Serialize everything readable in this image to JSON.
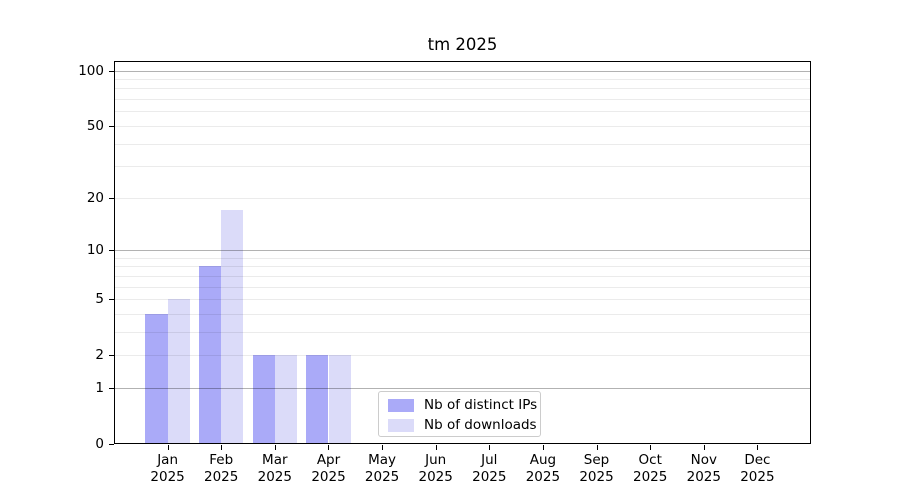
{
  "title": "tm 2025",
  "colors": {
    "background": "#ffffff",
    "spine": "#000000",
    "major_gridline": "#b3b3b3",
    "minor_gridline": "#ebebeb",
    "legend_border": "#cccccc",
    "bar_distinct_ips": "#aaaaf8",
    "bar_downloads": "#dbdbf9"
  },
  "chart_data": {
    "type": "bar",
    "title": "tm 2025",
    "xlabel": "",
    "ylabel": "",
    "categories": [
      "Jan 2025",
      "Feb 2025",
      "Mar 2025",
      "Apr 2025",
      "May 2025",
      "Jun 2025",
      "Jul 2025",
      "Aug 2025",
      "Sep 2025",
      "Oct 2025",
      "Nov 2025",
      "Dec 2025"
    ],
    "series": [
      {
        "name": "Nb of distinct IPs",
        "color": "#aaaaf8",
        "values": [
          4,
          8,
          2,
          2,
          0,
          0,
          0,
          0,
          0,
          0,
          0,
          0
        ]
      },
      {
        "name": "Nb of downloads",
        "color": "#dbdbf9",
        "values": [
          5,
          17,
          2,
          2,
          0,
          0,
          0,
          0,
          0,
          0,
          0,
          0
        ]
      }
    ],
    "yscale": "log1p",
    "ylim": [
      0,
      113
    ],
    "ytick_values": [
      0,
      1,
      2,
      5,
      10,
      20,
      50,
      100
    ],
    "major_gridlines": [
      1,
      10,
      100
    ],
    "minor_gridlines": [
      2,
      3,
      4,
      5,
      6,
      7,
      8,
      9,
      20,
      30,
      40,
      50,
      60,
      70,
      80,
      90
    ],
    "grid": true,
    "legend_position": "lower center-left inside plot"
  }
}
